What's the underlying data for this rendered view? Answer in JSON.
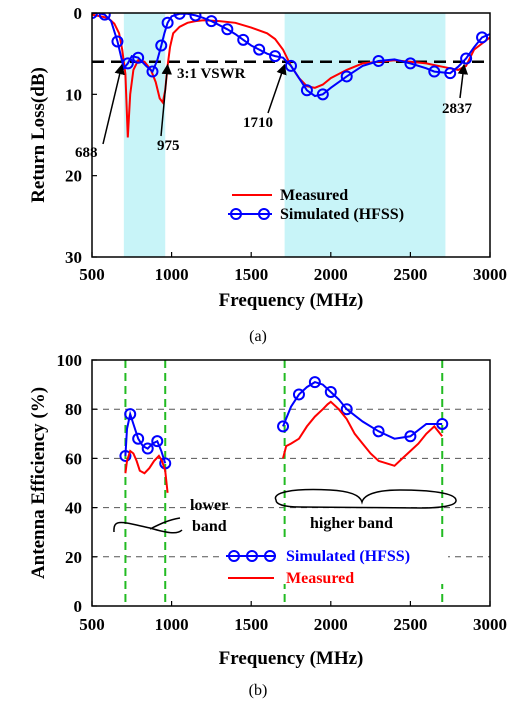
{
  "chart_data": [
    {
      "type": "line",
      "caption": "(a)",
      "xlabel": "Frequency (MHz)",
      "ylabel": "Return Loss(dB)",
      "xlim": [
        500,
        3000
      ],
      "ylim": [
        0,
        30
      ],
      "y_inverted": true,
      "xticks": [
        500,
        1000,
        1500,
        2000,
        2500,
        3000
      ],
      "yticks": [
        0,
        10,
        20,
        30
      ],
      "legend_position": "lower-right",
      "shaded_bands": [
        [
          700,
          960
        ],
        [
          1710,
          2720
        ]
      ],
      "reference_line": {
        "y": 6,
        "label": "3:1 VSWR",
        "style": "dashed",
        "color": "#000000"
      },
      "annotations": [
        {
          "text": "688",
          "x": 688
        },
        {
          "text": "975",
          "x": 975
        },
        {
          "text": "1710",
          "x": 1710
        },
        {
          "text": "2837",
          "x": 2837
        }
      ],
      "series": [
        {
          "name": "Measured",
          "color": "#ff0000",
          "marker": "none",
          "x": [
            500,
            600,
            640,
            670,
            690,
            710,
            725,
            740,
            760,
            790,
            830,
            870,
            900,
            925,
            945,
            960,
            975,
            990,
            1010,
            1050,
            1100,
            1150,
            1200,
            1300,
            1400,
            1500,
            1600,
            1650,
            1700,
            1750,
            1800,
            1850,
            1900,
            1950,
            2000,
            2100,
            2200,
            2300,
            2400,
            2500,
            2600,
            2650,
            2700,
            2750,
            2800,
            2850,
            2900,
            3000
          ],
          "y": [
            0.2,
            0.6,
            1.3,
            2.5,
            4.5,
            7.5,
            15.3,
            10.0,
            7.0,
            5.8,
            6.0,
            7.0,
            8.5,
            10.5,
            11.0,
            9.5,
            6.5,
            4.2,
            2.5,
            1.7,
            1.2,
            1.0,
            0.9,
            1.0,
            1.2,
            1.8,
            2.5,
            3.2,
            4.5,
            6.5,
            8.0,
            9.0,
            9.2,
            8.8,
            8.0,
            7.0,
            6.2,
            6.0,
            5.8,
            6.0,
            6.2,
            6.4,
            6.6,
            6.8,
            7.0,
            6.5,
            4.5,
            3.0
          ]
        },
        {
          "name": "Simulated (HFSS)",
          "color": "#0000ff",
          "marker": "circle",
          "x": [
            500,
            540,
            580,
            620,
            660,
            700,
            725,
            750,
            790,
            840,
            880,
            910,
            935,
            955,
            975,
            1000,
            1050,
            1100,
            1150,
            1200,
            1250,
            1300,
            1350,
            1400,
            1450,
            1500,
            1550,
            1600,
            1650,
            1700,
            1750,
            1800,
            1850,
            1900,
            1950,
            2000,
            2100,
            2200,
            2300,
            2400,
            2500,
            2600,
            2650,
            2700,
            2750,
            2800,
            2850,
            2900,
            2950,
            3000
          ],
          "y": [
            0,
            0,
            0.2,
            1.0,
            3.5,
            6.8,
            6.2,
            5.3,
            5.5,
            6.5,
            7.2,
            5.8,
            4.0,
            2.5,
            1.2,
            0.4,
            0.1,
            0.1,
            0.3,
            0.6,
            1.0,
            1.5,
            2.0,
            2.6,
            3.3,
            4.0,
            4.5,
            5.0,
            5.3,
            5.5,
            6.5,
            8.0,
            9.5,
            10.2,
            10.0,
            9.2,
            7.8,
            6.5,
            5.9,
            5.7,
            6.2,
            6.8,
            7.2,
            7.3,
            7.4,
            6.6,
            5.6,
            4.2,
            3.0,
            2.6
          ]
        }
      ]
    },
    {
      "type": "line",
      "caption": "(b)",
      "xlabel": "Frequency (MHz)",
      "ylabel": "Antenna Efficiency (%)",
      "xlim": [
        500,
        3000
      ],
      "ylim": [
        0,
        100
      ],
      "xticks": [
        500,
        1000,
        1500,
        2000,
        2500,
        3000
      ],
      "yticks": [
        0,
        20,
        40,
        60,
        80,
        100
      ],
      "legend_position": "bottom-center",
      "vertical_lines": {
        "x": [
          710,
          960,
          1710,
          2700
        ],
        "color": "#22bb22",
        "style": "dashed"
      },
      "annotations": [
        {
          "text": "lower band",
          "brace_x": [
            700,
            960
          ]
        },
        {
          "text": "higher band",
          "brace_x": [
            1700,
            2700
          ]
        }
      ],
      "series": [
        {
          "name": "Simulated (HFSS)",
          "color": "#0000ff",
          "marker": "circle",
          "segments": [
            {
              "x": [
                710,
                720,
                740,
                760,
                790,
                820,
                850,
                880,
                910,
                935,
                960
              ],
              "y": [
                61,
                72,
                78,
                74,
                68,
                65,
                64,
                66,
                67,
                63,
                58
              ]
            },
            {
              "x": [
                1700,
                1750,
                1800,
                1850,
                1900,
                1950,
                2000,
                2050,
                2100,
                2200,
                2300,
                2400,
                2500,
                2600,
                2700
              ],
              "y": [
                73,
                81,
                86,
                89,
                91,
                90,
                87,
                84,
                80,
                75,
                71,
                68,
                69,
                74,
                74
              ]
            }
          ]
        },
        {
          "name": "Measured",
          "color": "#ff0000",
          "marker": "none",
          "segments": [
            {
              "x": [
                710,
                720,
                740,
                760,
                780,
                800,
                830,
                860,
                890,
                920,
                940,
                960,
                975
              ],
              "y": [
                54,
                59,
                63,
                62,
                59,
                55,
                54,
                56,
                59,
                61,
                59,
                55,
                46
              ]
            },
            {
              "x": [
                1700,
                1720,
                1750,
                1800,
                1850,
                1900,
                1950,
                1980,
                2000,
                2050,
                2100,
                2150,
                2200,
                2250,
                2300,
                2350,
                2400,
                2450,
                2500,
                2550,
                2600,
                2650,
                2700
              ],
              "y": [
                60,
                65,
                66,
                68,
                73,
                77,
                80,
                82,
                83,
                80,
                76,
                70,
                66,
                62,
                59,
                58,
                57,
                60,
                63,
                66,
                70,
                73,
                69
              ]
            }
          ]
        }
      ]
    }
  ]
}
